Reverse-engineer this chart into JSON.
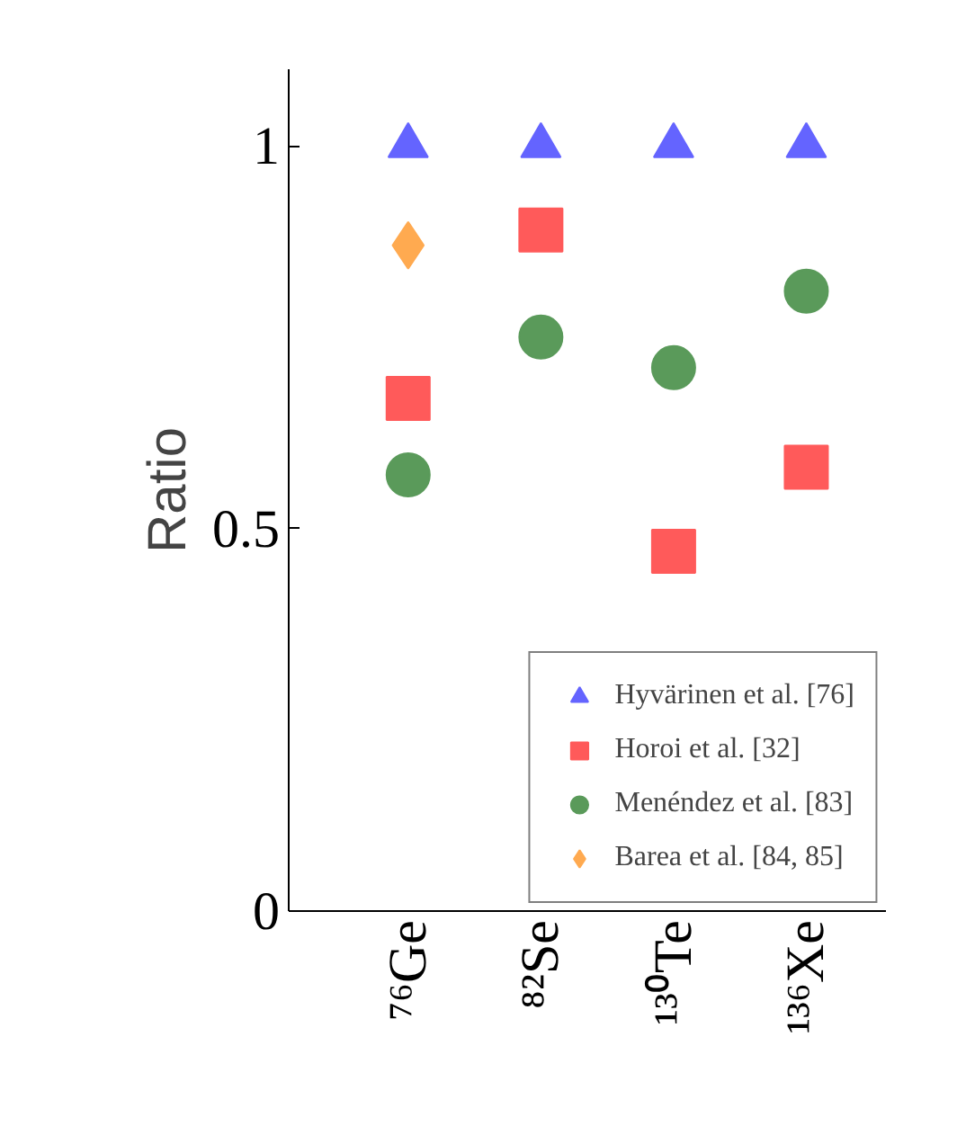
{
  "chart_data": {
    "type": "scatter",
    "ylabel": "Ratio",
    "categories": [
      "⁷⁶Ge",
      "⁸²Se",
      "¹³⁰Te",
      "¹³⁶Xe"
    ],
    "series": [
      {
        "name": "Hyvärinen et al. [76]",
        "color": "#6464ff",
        "marker": "triangle",
        "values": [
          1,
          1,
          1,
          1
        ]
      },
      {
        "name": "Horoi et al. [32]",
        "color": "#ff5a5a",
        "marker": "square",
        "values": [
          0.67,
          0.89,
          0.47,
          0.58
        ]
      },
      {
        "name": "Menéndez et al. [83]",
        "color": "#5a9a5a",
        "marker": "circle",
        "values": [
          0.57,
          0.75,
          0.71,
          0.81
        ]
      },
      {
        "name": "Barea et al. [84, 85]",
        "color": "#ffaa50",
        "marker": "diamond",
        "values": [
          0.87,
          null,
          null,
          null
        ]
      }
    ],
    "ylim": [
      0,
      1.1
    ],
    "yticks": [
      0,
      0.5,
      1
    ],
    "grid": false,
    "legend": "bottom right"
  }
}
